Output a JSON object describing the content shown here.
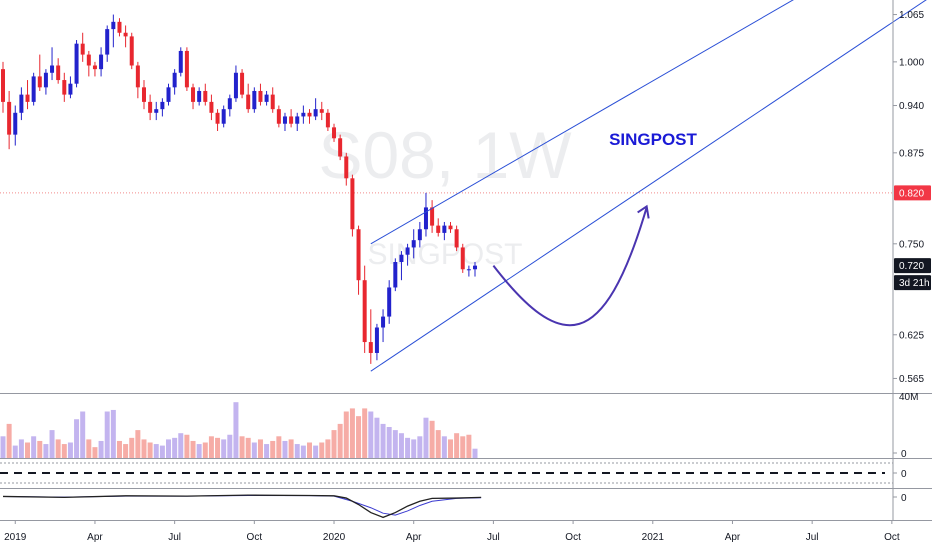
{
  "chart_data": {
    "type": "candlestick",
    "watermark": {
      "symbol": "S08, 1W",
      "name": "SINGPOST"
    },
    "annotation": "SINGPOST",
    "price_axis": {
      "ticks": [
        "1.065",
        "1.000",
        "0.940",
        "0.875",
        "0.750",
        "0.625",
        "0.565"
      ],
      "tick_values": [
        1.065,
        1.0,
        0.94,
        0.875,
        0.75,
        0.625,
        0.565
      ],
      "ylim": [
        0.545,
        1.085
      ]
    },
    "time_axis": {
      "labels": [
        "2019",
        "Apr",
        "Jul",
        "Oct",
        "2020",
        "Apr",
        "Jul",
        "Oct",
        "2021",
        "Apr",
        "Jul",
        "Oct"
      ],
      "label_week_index": [
        2,
        15,
        28,
        41,
        54,
        67,
        80,
        93,
        106,
        119,
        132,
        145
      ]
    },
    "markers": {
      "alert_price": "0.820",
      "last_price": "0.720",
      "countdown": "3d 21h"
    },
    "volume_axis": {
      "top_label": "40M",
      "bottom_label": "0"
    },
    "indicator_axes": {
      "panel1_zero": "0",
      "panel2_zero": "0"
    },
    "candles": [
      [
        0.99,
        1.0,
        0.93,
        0.945
      ],
      [
        0.945,
        0.96,
        0.88,
        0.9
      ],
      [
        0.9,
        0.94,
        0.885,
        0.93
      ],
      [
        0.93,
        0.965,
        0.92,
        0.955
      ],
      [
        0.955,
        0.975,
        0.935,
        0.945
      ],
      [
        0.945,
        0.985,
        0.94,
        0.98
      ],
      [
        0.98,
        1.01,
        0.96,
        0.965
      ],
      [
        0.965,
        0.99,
        0.955,
        0.985
      ],
      [
        0.985,
        1.02,
        0.975,
        0.995
      ],
      [
        0.995,
        1.005,
        0.97,
        0.975
      ],
      [
        0.975,
        0.985,
        0.945,
        0.955
      ],
      [
        0.955,
        0.98,
        0.95,
        0.97
      ],
      [
        0.97,
        1.03,
        0.965,
        1.025
      ],
      [
        1.025,
        1.04,
        1.0,
        1.01
      ],
      [
        1.01,
        1.015,
        0.98,
        0.995
      ],
      [
        0.995,
        1.0,
        0.98,
        0.99
      ],
      [
        0.99,
        1.02,
        0.98,
        1.01
      ],
      [
        1.01,
        1.05,
        1.0,
        1.045
      ],
      [
        1.045,
        1.065,
        1.02,
        1.055
      ],
      [
        1.055,
        1.06,
        1.035,
        1.04
      ],
      [
        1.04,
        1.05,
        1.02,
        1.035
      ],
      [
        1.035,
        1.04,
        0.99,
        0.995
      ],
      [
        0.995,
        1.0,
        0.95,
        0.965
      ],
      [
        0.965,
        0.975,
        0.935,
        0.945
      ],
      [
        0.945,
        0.955,
        0.92,
        0.93
      ],
      [
        0.93,
        0.945,
        0.92,
        0.935
      ],
      [
        0.935,
        0.95,
        0.925,
        0.945
      ],
      [
        0.945,
        0.97,
        0.94,
        0.965
      ],
      [
        0.965,
        0.99,
        0.955,
        0.985
      ],
      [
        0.985,
        1.02,
        0.98,
        1.015
      ],
      [
        1.015,
        1.02,
        0.96,
        0.965
      ],
      [
        0.965,
        0.97,
        0.935,
        0.945
      ],
      [
        0.945,
        0.965,
        0.94,
        0.96
      ],
      [
        0.96,
        0.97,
        0.94,
        0.945
      ],
      [
        0.945,
        0.955,
        0.92,
        0.93
      ],
      [
        0.93,
        0.935,
        0.905,
        0.915
      ],
      [
        0.915,
        0.94,
        0.91,
        0.935
      ],
      [
        0.935,
        0.955,
        0.925,
        0.95
      ],
      [
        0.95,
        0.995,
        0.945,
        0.985
      ],
      [
        0.985,
        0.99,
        0.95,
        0.955
      ],
      [
        0.955,
        0.97,
        0.93,
        0.935
      ],
      [
        0.935,
        0.965,
        0.93,
        0.96
      ],
      [
        0.96,
        0.97,
        0.94,
        0.945
      ],
      [
        0.945,
        0.96,
        0.94,
        0.955
      ],
      [
        0.955,
        0.965,
        0.93,
        0.935
      ],
      [
        0.935,
        0.94,
        0.91,
        0.915
      ],
      [
        0.915,
        0.93,
        0.905,
        0.925
      ],
      [
        0.925,
        0.935,
        0.91,
        0.915
      ],
      [
        0.915,
        0.93,
        0.905,
        0.925
      ],
      [
        0.925,
        0.94,
        0.915,
        0.93
      ],
      [
        0.93,
        0.935,
        0.915,
        0.925
      ],
      [
        0.925,
        0.95,
        0.92,
        0.935
      ],
      [
        0.935,
        0.945,
        0.92,
        0.93
      ],
      [
        0.93,
        0.935,
        0.905,
        0.91
      ],
      [
        0.91,
        0.915,
        0.89,
        0.895
      ],
      [
        0.895,
        0.9,
        0.865,
        0.87
      ],
      [
        0.87,
        0.875,
        0.83,
        0.84
      ],
      [
        0.84,
        0.845,
        0.76,
        0.77
      ],
      [
        0.77,
        0.775,
        0.68,
        0.7
      ],
      [
        0.7,
        0.72,
        0.6,
        0.615
      ],
      [
        0.615,
        0.66,
        0.585,
        0.6
      ],
      [
        0.6,
        0.64,
        0.59,
        0.635
      ],
      [
        0.635,
        0.66,
        0.615,
        0.65
      ],
      [
        0.65,
        0.7,
        0.64,
        0.69
      ],
      [
        0.69,
        0.73,
        0.685,
        0.725
      ],
      [
        0.725,
        0.74,
        0.7,
        0.735
      ],
      [
        0.735,
        0.75,
        0.72,
        0.745
      ],
      [
        0.745,
        0.77,
        0.73,
        0.755
      ],
      [
        0.755,
        0.78,
        0.745,
        0.77
      ],
      [
        0.77,
        0.82,
        0.76,
        0.8
      ],
      [
        0.8,
        0.81,
        0.765,
        0.775
      ],
      [
        0.775,
        0.785,
        0.76,
        0.765
      ],
      [
        0.765,
        0.78,
        0.755,
        0.775
      ],
      [
        0.775,
        0.78,
        0.765,
        0.77
      ],
      [
        0.77,
        0.775,
        0.74,
        0.745
      ],
      [
        0.745,
        0.75,
        0.71,
        0.715
      ],
      [
        0.715,
        0.72,
        0.705,
        0.715
      ],
      [
        0.715,
        0.725,
        0.705,
        0.72
      ]
    ],
    "volume_bars": [
      [
        14,
        "up"
      ],
      [
        22,
        "down"
      ],
      [
        8,
        "up"
      ],
      [
        12,
        "up"
      ],
      [
        10,
        "down"
      ],
      [
        14,
        "up"
      ],
      [
        11,
        "down"
      ],
      [
        9,
        "up"
      ],
      [
        18,
        "up"
      ],
      [
        12,
        "down"
      ],
      [
        9,
        "down"
      ],
      [
        10,
        "up"
      ],
      [
        25,
        "up"
      ],
      [
        30,
        "up"
      ],
      [
        12,
        "down"
      ],
      [
        7,
        "down"
      ],
      [
        11,
        "up"
      ],
      [
        30,
        "up"
      ],
      [
        31,
        "up"
      ],
      [
        11,
        "down"
      ],
      [
        9,
        "down"
      ],
      [
        13,
        "down"
      ],
      [
        18,
        "down"
      ],
      [
        12,
        "down"
      ],
      [
        10,
        "down"
      ],
      [
        9,
        "up"
      ],
      [
        8,
        "up"
      ],
      [
        12,
        "up"
      ],
      [
        13,
        "up"
      ],
      [
        16,
        "up"
      ],
      [
        15,
        "down"
      ],
      [
        11,
        "down"
      ],
      [
        9,
        "up"
      ],
      [
        10,
        "down"
      ],
      [
        14,
        "down"
      ],
      [
        13,
        "down"
      ],
      [
        12,
        "up"
      ],
      [
        15,
        "up"
      ],
      [
        36,
        "up"
      ],
      [
        14,
        "down"
      ],
      [
        13,
        "down"
      ],
      [
        10,
        "up"
      ],
      [
        12,
        "down"
      ],
      [
        9,
        "up"
      ],
      [
        11,
        "down"
      ],
      [
        14,
        "down"
      ],
      [
        11,
        "up"
      ],
      [
        12,
        "down"
      ],
      [
        9,
        "up"
      ],
      [
        8,
        "up"
      ],
      [
        10,
        "down"
      ],
      [
        8,
        "up"
      ],
      [
        10,
        "down"
      ],
      [
        12,
        "down"
      ],
      [
        18,
        "down"
      ],
      [
        22,
        "down"
      ],
      [
        30,
        "down"
      ],
      [
        32,
        "down"
      ],
      [
        27,
        "down"
      ],
      [
        32,
        "down"
      ],
      [
        30,
        "up"
      ],
      [
        26,
        "up"
      ],
      [
        22,
        "up"
      ],
      [
        20,
        "up"
      ],
      [
        18,
        "up"
      ],
      [
        16,
        "up"
      ],
      [
        13,
        "up"
      ],
      [
        12,
        "up"
      ],
      [
        14,
        "up"
      ],
      [
        26,
        "up"
      ],
      [
        24,
        "down"
      ],
      [
        18,
        "down"
      ],
      [
        14,
        "up"
      ],
      [
        12,
        "down"
      ],
      [
        16,
        "down"
      ],
      [
        14,
        "down"
      ],
      [
        15,
        "down"
      ],
      [
        6,
        "up"
      ]
    ],
    "volume_ylim": [
      0,
      40
    ],
    "channel": {
      "upper": [
        [
          60,
          0.75
        ],
        [
          134,
          1.11
        ]
      ],
      "lower": [
        [
          60,
          0.575
        ],
        [
          155,
          1.11
        ]
      ]
    },
    "projection": [
      [
        80,
        0.72
      ],
      [
        91,
        0.65
      ],
      [
        98,
        0.66
      ],
      [
        105,
        0.8
      ]
    ],
    "indicator_line": [
      [
        0,
        0
      ],
      [
        10,
        -0.3
      ],
      [
        20,
        0.2
      ],
      [
        30,
        0.1
      ],
      [
        40,
        0.4
      ],
      [
        50,
        0.3
      ],
      [
        54,
        0.2
      ],
      [
        56,
        -0.5
      ],
      [
        58,
        -2.5
      ],
      [
        60,
        -5
      ],
      [
        62,
        -6.5
      ],
      [
        64,
        -5
      ],
      [
        66,
        -3
      ],
      [
        68,
        -1.5
      ],
      [
        70,
        -0.6
      ],
      [
        74,
        -0.5
      ],
      [
        78,
        -0.3
      ]
    ],
    "signal_line": [
      [
        0,
        0
      ],
      [
        10,
        -0.2
      ],
      [
        20,
        0.1
      ],
      [
        30,
        0.1
      ],
      [
        40,
        0.3
      ],
      [
        50,
        0.25
      ],
      [
        54,
        0.1
      ],
      [
        57,
        -1.5
      ],
      [
        60,
        -3.5
      ],
      [
        62,
        -5.2
      ],
      [
        64,
        -5.8
      ],
      [
        66,
        -4.5
      ],
      [
        68,
        -2.8
      ],
      [
        70,
        -1.5
      ],
      [
        74,
        -0.6
      ],
      [
        78,
        -0.4
      ]
    ],
    "indicator_ylim": [
      -7,
      2
    ],
    "colors": {
      "up": "#2222cc",
      "down": "#e8272f",
      "vol_up": "#c3b4ef",
      "vol_down": "#f6aca6",
      "annotation": "#1a1ad6",
      "channel": "#2a4fd6",
      "projection": "#4a35b0",
      "alert_bg": "#f23645",
      "last_bg": "#131722",
      "ind_black": "#222222",
      "ind_blue": "#3b3bd0"
    }
  }
}
